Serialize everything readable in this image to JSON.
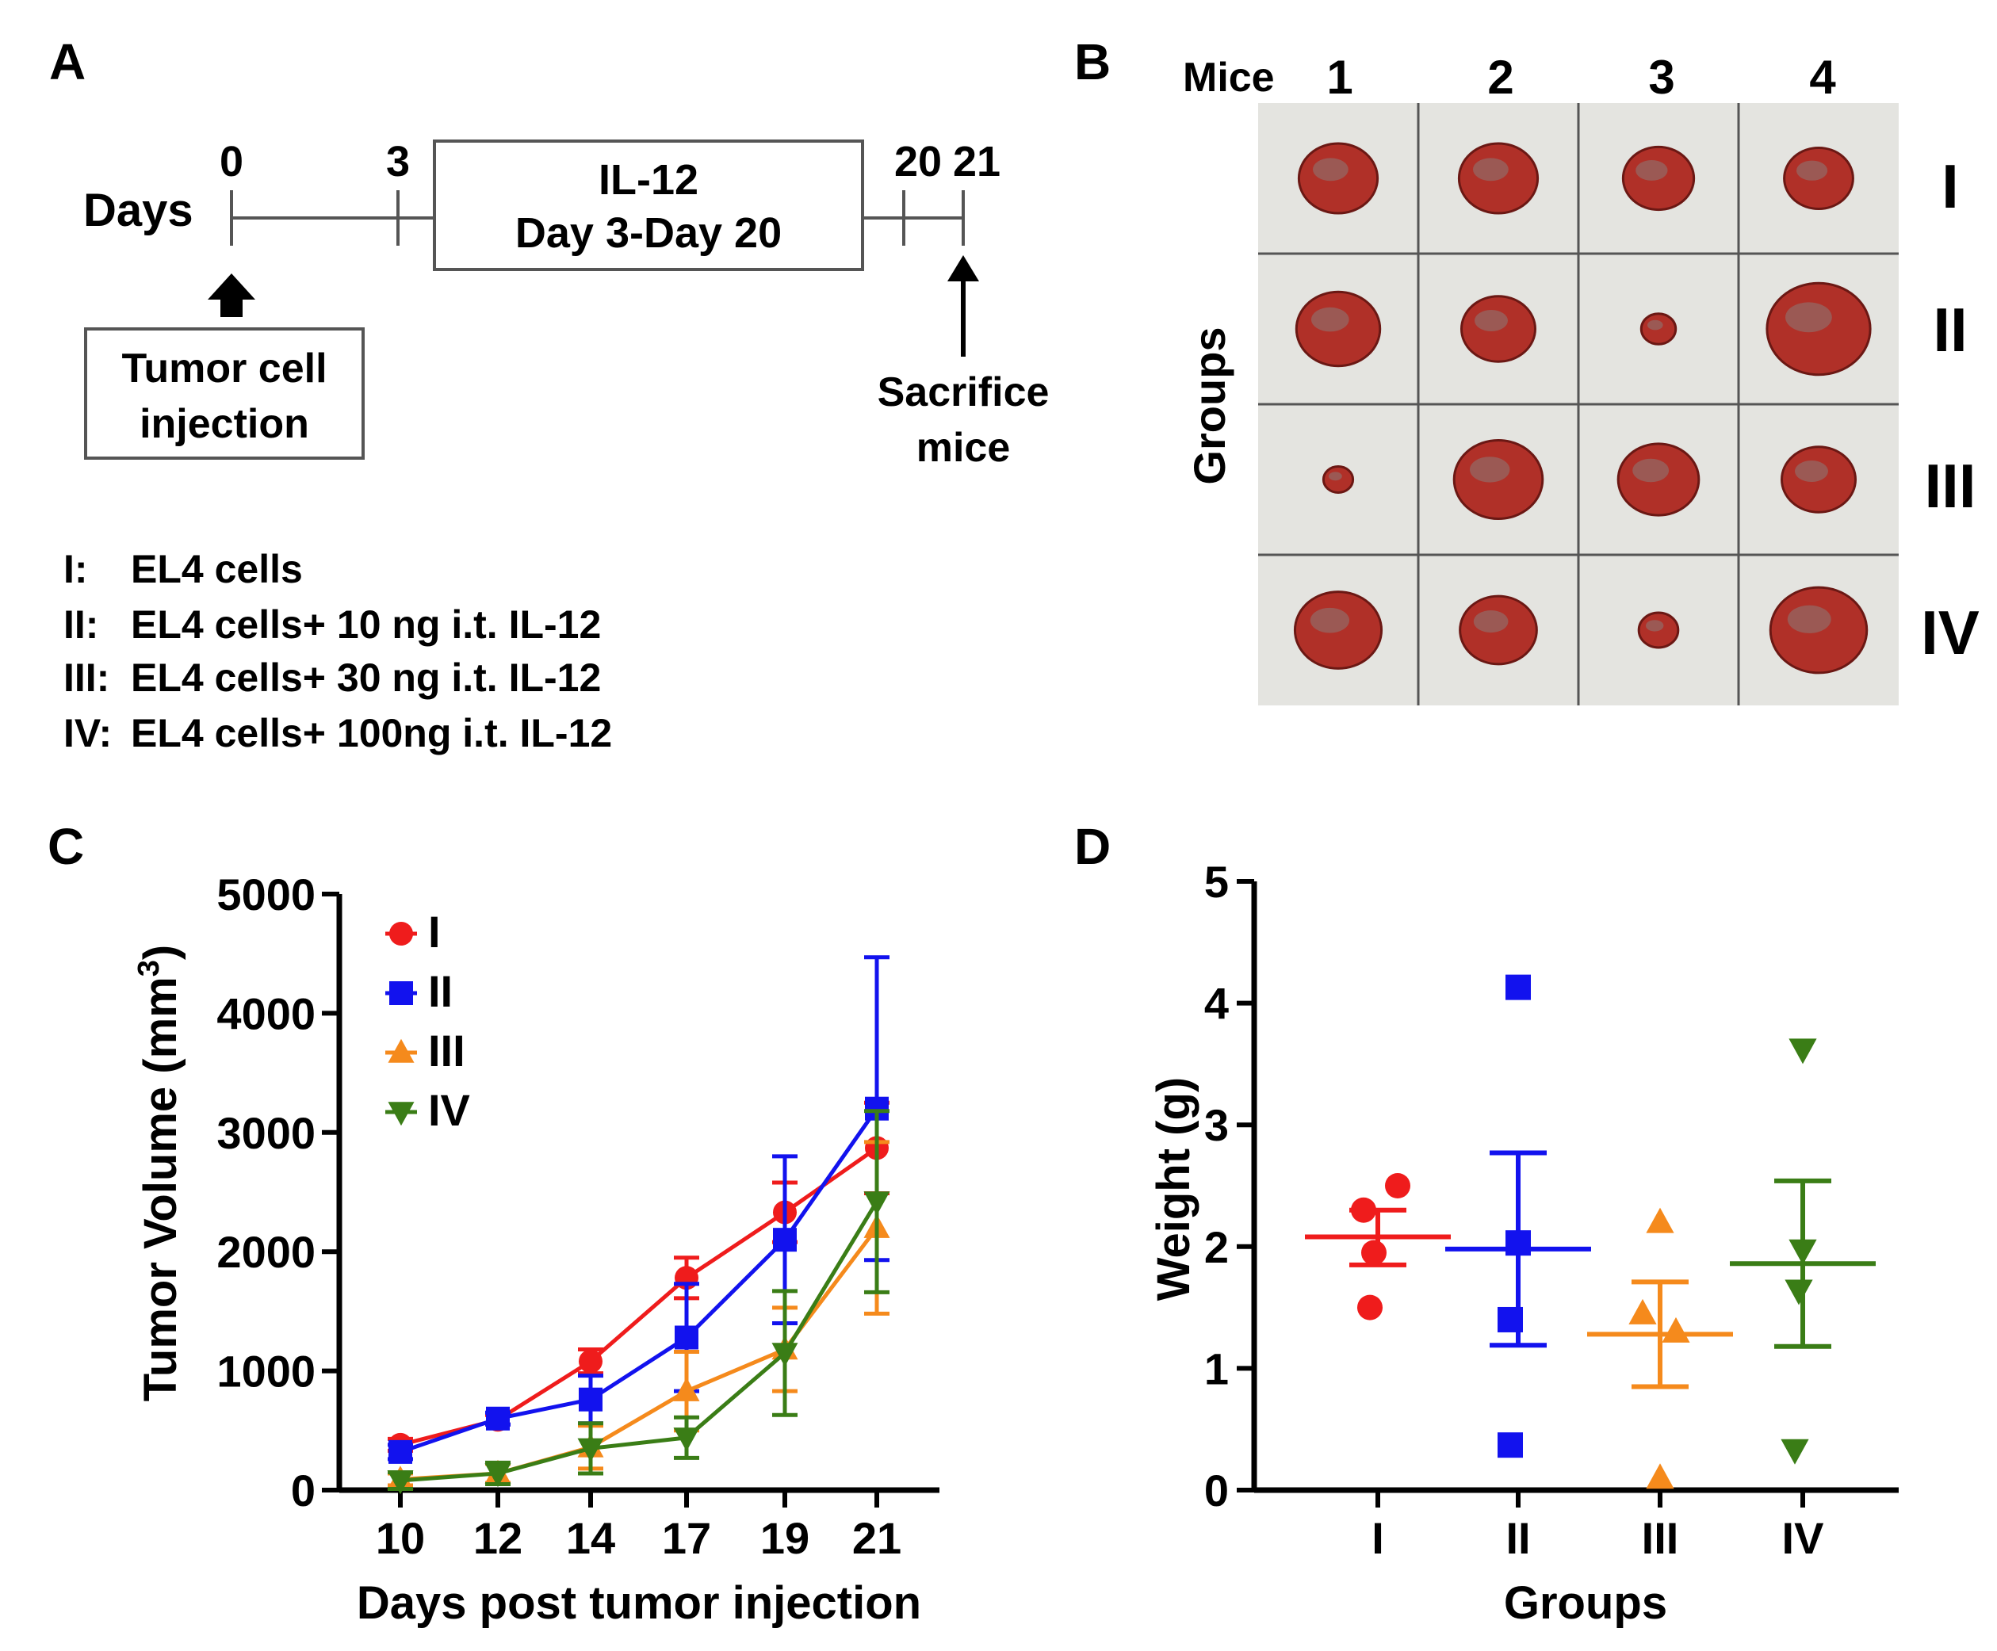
{
  "panel_labels": {
    "a": "A",
    "b": "B",
    "c": "C",
    "d": "D"
  },
  "colors": {
    "I": "#ef1c1c",
    "II": "#1212ee",
    "III": "#f58a1c",
    "IV": "#3a7d16",
    "photo_bg": "#e4e4e0",
    "tumor": "#b03028"
  },
  "timeline": {
    "days_label": "Days",
    "ticks": [
      "0",
      "3",
      "20",
      "21"
    ],
    "treatment_title": "IL-12",
    "treatment_days": "Day 3-Day 20",
    "injection_line1": "Tumor cell",
    "injection_line2": "injection",
    "sacrifice_line1": "Sacrifice",
    "sacrifice_line2": "mice"
  },
  "groups_legend": [
    {
      "key": "I:",
      "text": "EL4 cells"
    },
    {
      "key": "II:",
      "text": "EL4 cells+ 10 ng i.t. IL-12"
    },
    {
      "key": "III:",
      "text": "EL4 cells+ 30 ng i.t. IL-12"
    },
    {
      "key": "IV:",
      "text": "EL4 cells+ 100ng i.t. IL-12"
    }
  ],
  "photo": {
    "mice_label": "Mice",
    "mice": [
      "1",
      "2",
      "3",
      "4"
    ],
    "groups_label": "Groups",
    "groups": [
      "I",
      "II",
      "III",
      "IV"
    ],
    "tumor_sizes": [
      [
        0.8,
        0.8,
        0.72,
        0.7
      ],
      [
        0.85,
        0.75,
        0.35,
        1.05
      ],
      [
        0.3,
        0.9,
        0.82,
        0.75
      ],
      [
        0.88,
        0.78,
        0.4,
        0.98
      ]
    ]
  },
  "chart_data": [
    {
      "type": "line",
      "panel": "C",
      "xlabel": "Days post tumor injection",
      "ylabel": "Tumor Volume (mm",
      "ylabel_sup": "3",
      "ylabel_close": ")",
      "categories": [
        "10",
        "12",
        "14",
        "17",
        "19",
        "21"
      ],
      "ylim": [
        0,
        5000
      ],
      "yticks": [
        "0",
        "1000",
        "2000",
        "3000",
        "4000",
        "5000"
      ],
      "legend": "top-left",
      "series": [
        {
          "name": "I",
          "marker": "circle",
          "values": [
            380,
            590,
            1080,
            1780,
            2330,
            2870
          ],
          "errors": [
            50,
            40,
            100,
            170,
            250,
            380
          ]
        },
        {
          "name": "II",
          "marker": "square",
          "values": [
            320,
            600,
            760,
            1280,
            2100,
            3200
          ],
          "errors": [
            60,
            50,
            200,
            450,
            700,
            1270
          ]
        },
        {
          "name": "III",
          "marker": "triangle-up",
          "values": [
            90,
            140,
            360,
            830,
            1180,
            2200
          ],
          "errors": [
            50,
            80,
            180,
            330,
            350,
            720
          ]
        },
        {
          "name": "IV",
          "marker": "triangle-down",
          "values": [
            80,
            140,
            350,
            440,
            1150,
            2420
          ],
          "errors": [
            70,
            90,
            210,
            170,
            520,
            760
          ]
        }
      ]
    },
    {
      "type": "scatter",
      "panel": "D",
      "xlabel": "Groups",
      "ylabel": "Weight (g)",
      "categories": [
        "I",
        "II",
        "III",
        "IV"
      ],
      "ylim": [
        0,
        5
      ],
      "yticks": [
        "0",
        "1",
        "2",
        "3",
        "4",
        "5"
      ],
      "series": [
        {
          "name": "I",
          "marker": "circle",
          "points": [
            2.3,
            2.5,
            1.95,
            1.5
          ],
          "mean": 2.08,
          "sem": [
            1.85,
            2.3
          ]
        },
        {
          "name": "II",
          "marker": "square",
          "points": [
            4.13,
            2.03,
            1.4,
            0.37
          ],
          "mean": 1.98,
          "sem": [
            1.19,
            2.77
          ]
        },
        {
          "name": "III",
          "marker": "triangle-up",
          "points": [
            2.2,
            1.45,
            1.3,
            0.1
          ],
          "mean": 1.28,
          "sem": [
            0.85,
            1.71
          ]
        },
        {
          "name": "IV",
          "marker": "triangle-down",
          "points": [
            3.62,
            1.97,
            1.64,
            0.33
          ],
          "mean": 1.86,
          "sem": [
            1.18,
            2.54
          ]
        }
      ]
    }
  ]
}
